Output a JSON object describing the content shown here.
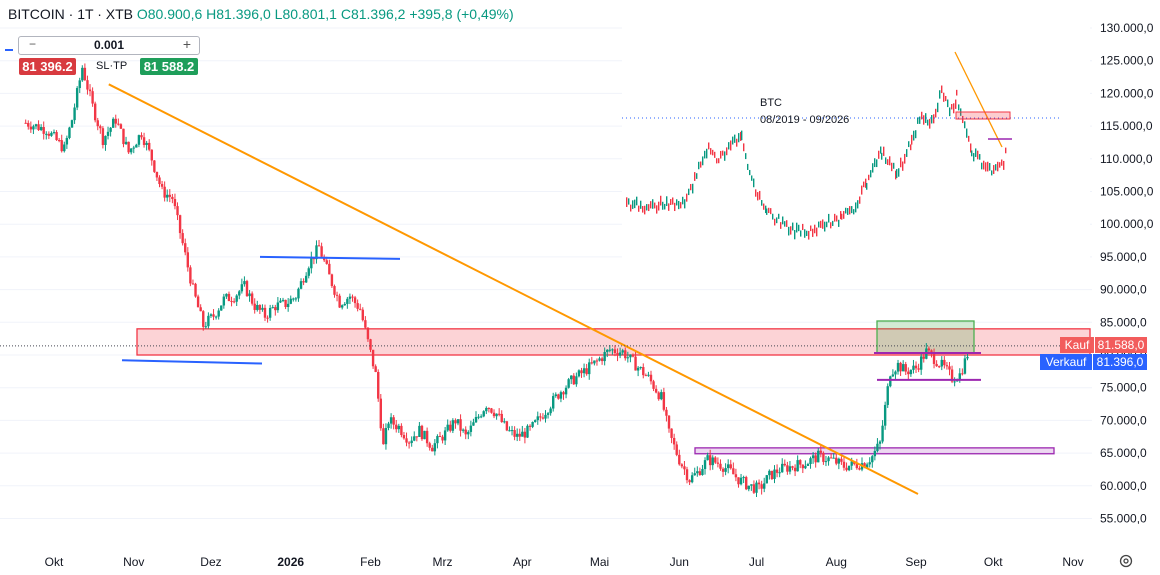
{
  "header": {
    "symbol": "BITCOIN · 1T · XTB",
    "open": "O80.900,6",
    "high": "H81.396,0",
    "low": "L80.801,1",
    "close": "C81.396,2",
    "change": "+395,8 (+0,49%)"
  },
  "trade_panel": {
    "quantity": "0.001",
    "minus": "−",
    "plus": "+",
    "sell_price": "81 396.2",
    "sltp_label": "SL·TP",
    "buy_price": "81 588.2"
  },
  "price_tags": {
    "kauf_label": "Kauf",
    "kauf_value": "81.588,0",
    "verkauf_label": "Verkauf",
    "verkauf_value": "81.396,0",
    "kauf_color": "#f25c5c",
    "verkauf_color": "#2962ff"
  },
  "chart_data": {
    "type": "candlestick",
    "y_axis": {
      "min": 53000,
      "max": 132000,
      "ticks": [
        55000,
        60000,
        65000,
        70000,
        75000,
        80000,
        85000,
        90000,
        95000,
        100000,
        105000,
        110000,
        115000,
        120000,
        125000,
        130000
      ],
      "tick_labels": [
        "55.000,0",
        "60.000,0",
        "65.000,0",
        "70.000,0",
        "75.000,0",
        "80.000,0",
        "85.000,0",
        "90.000,0",
        "95.000,0",
        "100.000,0",
        "105.000,0",
        "110.000,0",
        "115.000,0",
        "120.000,0",
        "125.000,0",
        "130.000,0"
      ]
    },
    "x_axis": {
      "labels": [
        "Okt",
        "Nov",
        "Dez",
        "2026",
        "Feb",
        "Mrz",
        "Apr",
        "Mai",
        "Jun",
        "Jul",
        "Aug",
        "Sep",
        "Okt",
        "Nov"
      ],
      "bold": [
        "2026"
      ],
      "start": "2025-10-01",
      "end": "2026-11-01"
    },
    "price_path": [
      [
        "2025-09-20",
        115500
      ],
      [
        "2025-09-28",
        114500
      ],
      [
        "2025-10-05",
        111500
      ],
      [
        "2025-10-08",
        116000
      ],
      [
        "2025-10-12",
        124000
      ],
      [
        "2025-10-16",
        118000
      ],
      [
        "2025-10-20",
        113000
      ],
      [
        "2025-10-25",
        116000
      ],
      [
        "2025-10-30",
        111000
      ],
      [
        "2025-11-04",
        114000
      ],
      [
        "2025-11-08",
        110000
      ],
      [
        "2025-11-12",
        105000
      ],
      [
        "2025-11-16",
        104000
      ],
      [
        "2025-11-20",
        97000
      ],
      [
        "2025-11-24",
        90000
      ],
      [
        "2025-11-28",
        84500
      ],
      [
        "2025-12-02",
        86000
      ],
      [
        "2025-12-06",
        88500
      ],
      [
        "2025-12-10",
        89000
      ],
      [
        "2025-12-14",
        90500
      ],
      [
        "2025-12-18",
        87500
      ],
      [
        "2025-12-22",
        86000
      ],
      [
        "2025-12-26",
        87500
      ],
      [
        "2025-12-30",
        87800
      ],
      [
        "2026-01-03",
        89000
      ],
      [
        "2026-01-08",
        94000
      ],
      [
        "2026-01-12",
        96500
      ],
      [
        "2026-01-16",
        92000
      ],
      [
        "2026-01-20",
        88000
      ],
      [
        "2026-01-24",
        89000
      ],
      [
        "2026-01-28",
        87000
      ],
      [
        "2026-01-31",
        82000
      ],
      [
        "2026-02-03",
        77000
      ],
      [
        "2026-02-06",
        66000
      ],
      [
        "2026-02-08",
        70000
      ],
      [
        "2026-02-12",
        69000
      ],
      [
        "2026-02-16",
        67000
      ],
      [
        "2026-02-20",
        68500
      ],
      [
        "2026-02-25",
        66000
      ],
      [
        "2026-03-02",
        68000
      ],
      [
        "2026-03-06",
        70000
      ],
      [
        "2026-03-10",
        67500
      ],
      [
        "2026-03-14",
        70000
      ],
      [
        "2026-03-18",
        72500
      ],
      [
        "2026-03-22",
        71000
      ],
      [
        "2026-03-26",
        68500
      ],
      [
        "2026-03-30",
        67500
      ],
      [
        "2026-04-04",
        68500
      ],
      [
        "2026-04-08",
        70500
      ],
      [
        "2026-04-12",
        72500
      ],
      [
        "2026-04-16",
        74500
      ],
      [
        "2026-04-20",
        76000
      ],
      [
        "2026-04-25",
        77500
      ],
      [
        "2026-04-30",
        79000
      ],
      [
        "2026-05-05",
        80800
      ],
      [
        "2026-05-10",
        80500
      ],
      [
        "2026-05-15",
        78500
      ],
      [
        "2026-05-20",
        76500
      ],
      [
        "2026-05-25",
        73500
      ],
      [
        "2026-05-28",
        68000
      ],
      [
        "2026-06-01",
        64000
      ],
      [
        "2026-06-05",
        61000
      ],
      [
        "2026-06-08",
        62000
      ],
      [
        "2026-06-12",
        64000
      ],
      [
        "2026-06-16",
        63500
      ],
      [
        "2026-06-20",
        62500
      ],
      [
        "2026-06-24",
        61000
      ],
      [
        "2026-06-28",
        60000
      ],
      [
        "2026-07-02",
        59500
      ],
      [
        "2026-07-06",
        61500
      ],
      [
        "2026-07-10",
        62500
      ],
      [
        "2026-07-15",
        63000
      ],
      [
        "2026-07-20",
        63500
      ],
      [
        "2026-07-25",
        64500
      ],
      [
        "2026-07-30",
        64000
      ],
      [
        "2026-08-04",
        63000
      ],
      [
        "2026-08-08",
        63200
      ],
      [
        "2026-08-12",
        63500
      ],
      [
        "2026-08-15",
        64500
      ],
      [
        "2026-08-18",
        66500
      ],
      [
        "2026-08-20",
        72000
      ],
      [
        "2026-08-22",
        77500
      ],
      [
        "2026-08-25",
        78500
      ],
      [
        "2026-08-28",
        77500
      ],
      [
        "2026-09-01",
        78000
      ],
      [
        "2026-09-05",
        80500
      ],
      [
        "2026-09-08",
        79500
      ],
      [
        "2026-09-12",
        78000
      ],
      [
        "2026-09-15",
        76500
      ],
      [
        "2026-09-18",
        77000
      ],
      [
        "2026-09-20",
        79000
      ],
      [
        "2026-09-22",
        81300
      ]
    ],
    "annotations": {
      "resistance_zone": [
        80000,
        84000
      ],
      "trendline": [
        [
          "2025-11-01",
          122000
        ],
        [
          "2026-08-30",
          59000
        ]
      ],
      "blue_line_upper": [
        [
          "2025-12-20",
          95000
        ],
        [
          "2026-02-15",
          94700
        ]
      ],
      "blue_line_lower": [
        [
          "2025-11-01",
          79200
        ],
        [
          "2026-01-02",
          78700
        ]
      ],
      "purple_zone_lower": [
        64900,
        65800
      ],
      "purple_line_upper": 76200,
      "green_box": [
        80300,
        85200
      ],
      "purple_line_mid": 80300,
      "dotted_price": 81396
    }
  },
  "inset": {
    "title_line1": "BTC",
    "title_line2": "08/2019 - 09/2026",
    "y_ticks_dense": 16,
    "x_ticks_dense": 16
  },
  "colors": {
    "bull": "#089981",
    "bear": "#f23645",
    "trendline": "#ff9800",
    "zone_red": "#f23645",
    "zone_purple": "#9c27b0",
    "box_green": "#4caf50",
    "line_blue": "#2962ff"
  },
  "settings_icon": "gear-icon"
}
